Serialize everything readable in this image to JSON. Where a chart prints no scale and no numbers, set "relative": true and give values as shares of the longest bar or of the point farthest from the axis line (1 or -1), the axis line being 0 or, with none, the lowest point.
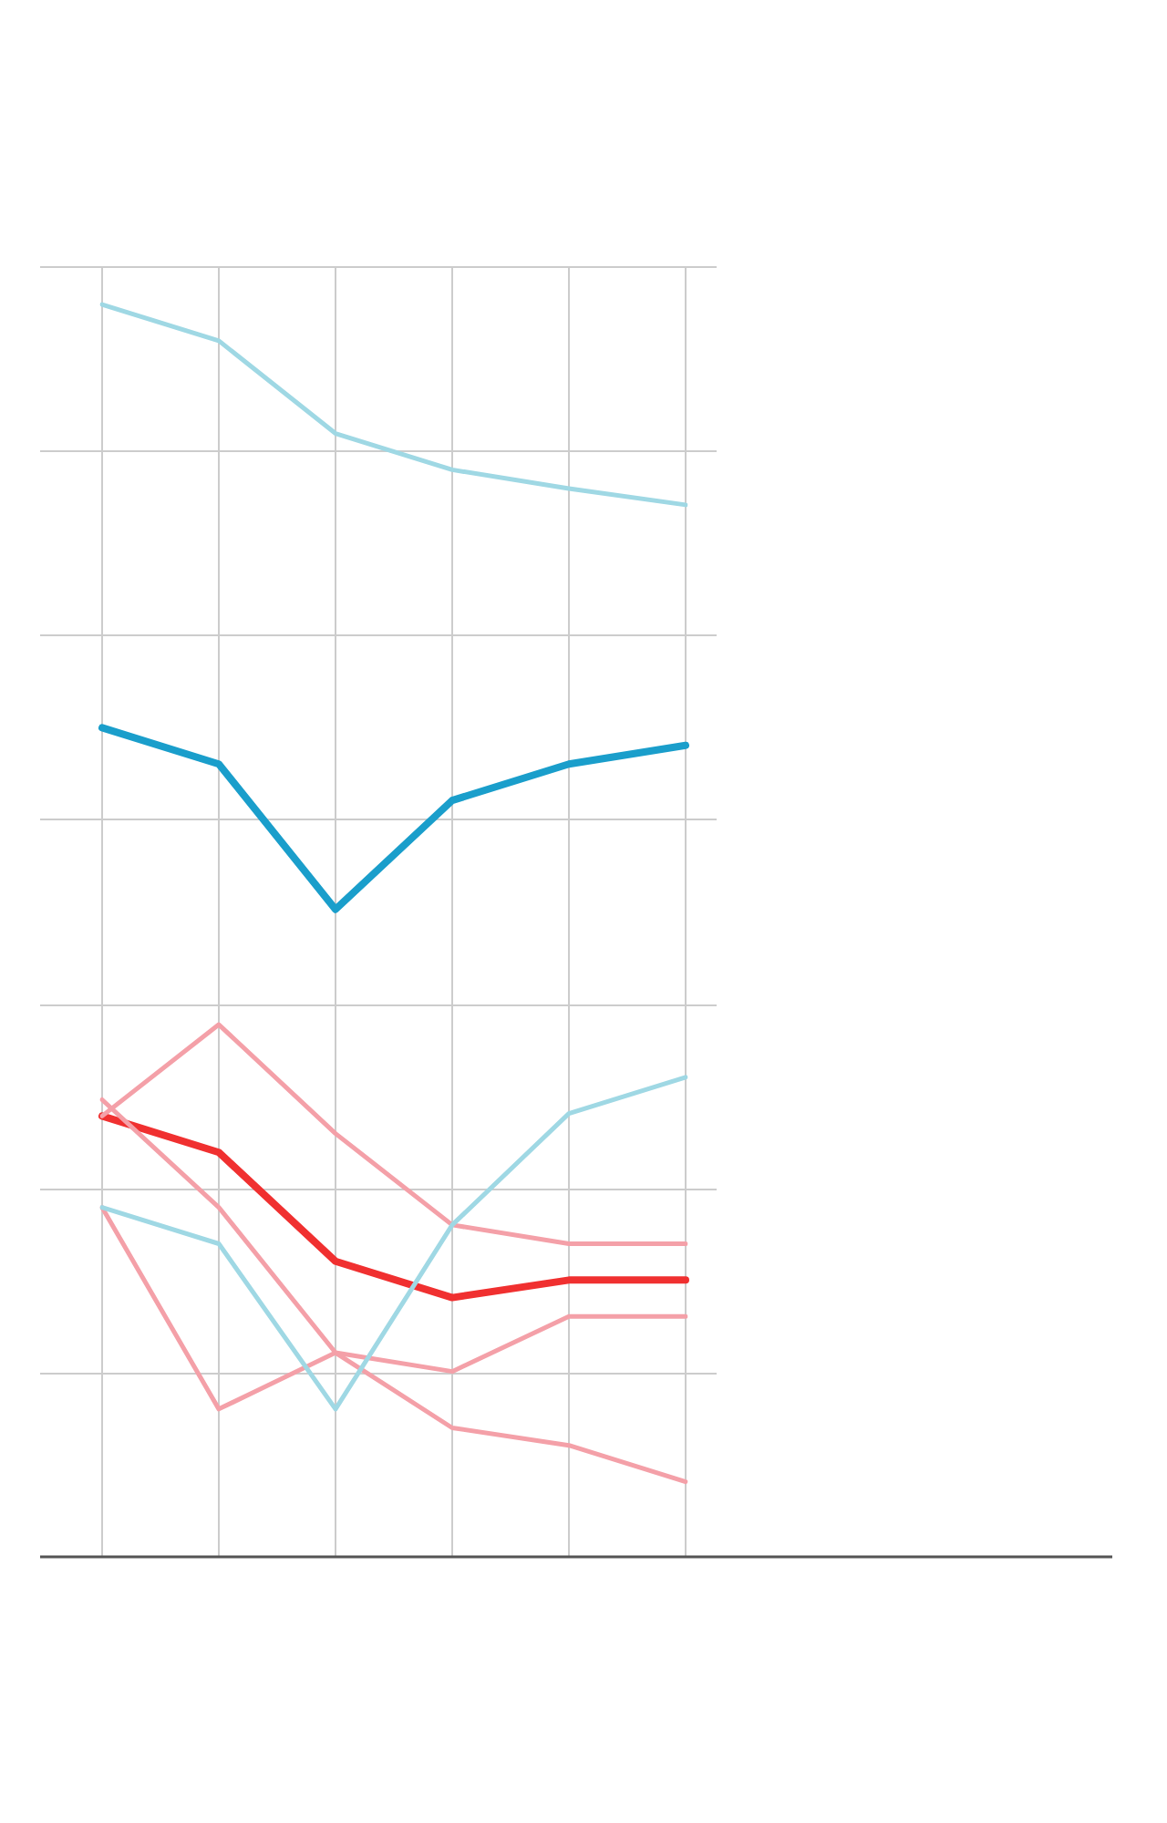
{
  "chart_data": {
    "type": "line",
    "relative": true,
    "grid": true,
    "legend": false,
    "marker": "none",
    "line_style": "solid",
    "categories": [
      null,
      null,
      null,
      null,
      null,
      null
    ],
    "series": [
      {
        "color": "#9fd8e4",
        "values": [
          1,
          0.971,
          0.897,
          0.868,
          0.853,
          0.84
        ]
      },
      {
        "color": "#9fd8e4",
        "values": [
          0.279,
          0.25,
          0.118,
          0.265,
          0.354,
          0.383
        ]
      },
      {
        "color": "#f4a0a8",
        "values": [
          0.365,
          0.279,
          0.163,
          0.103,
          0.089,
          0.06
        ]
      },
      {
        "color": "#f4a0a8",
        "values": [
          0.352,
          0.425,
          0.338,
          0.265,
          0.25,
          0.25
        ]
      },
      {
        "color": "#f4a0a8",
        "values": [
          0.279,
          0.118,
          0.163,
          0.148,
          0.192,
          0.192
        ]
      },
      {
        "color": "#1a9ecb",
        "values": [
          0.662,
          0.633,
          0.517,
          0.604,
          0.633,
          0.648
        ]
      },
      {
        "color": "#f03030",
        "values": [
          0.352,
          0.323,
          0.236,
          0.207,
          0.221,
          0.221
        ]
      }
    ]
  }
}
